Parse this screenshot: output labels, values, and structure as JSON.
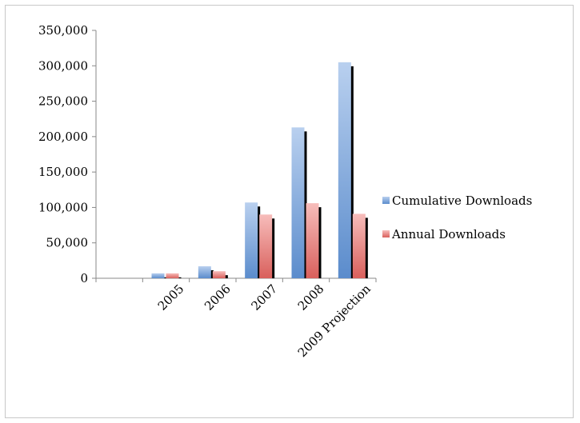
{
  "chart_data": {
    "type": "bar",
    "categories": [
      "",
      "2005",
      "2006",
      "2007",
      "2008",
      "2009 Projection"
    ],
    "series": [
      {
        "name": "Cumulative Downloads",
        "values": [
          0,
          7000,
          17000,
          107000,
          213000,
          305000
        ],
        "color": "#8eb4e3",
        "color_dark": "#4f81bd"
      },
      {
        "name": "Annual Downloads",
        "values": [
          0,
          7000,
          10000,
          90000,
          106000,
          91000
        ],
        "color": "#f2a3a1",
        "color_dark": "#c0504d"
      }
    ],
    "ylim": [
      0,
      350000
    ],
    "yticks": [
      0,
      50000,
      100000,
      150000,
      200000,
      250000,
      300000,
      350000
    ],
    "ytick_labels": [
      "0",
      "50,000",
      "100,000",
      "150,000",
      "200,000",
      "250,000",
      "300,000",
      "350,000"
    ],
    "grid": false,
    "legend": "right",
    "title": "",
    "xlabel": "",
    "ylabel": ""
  }
}
